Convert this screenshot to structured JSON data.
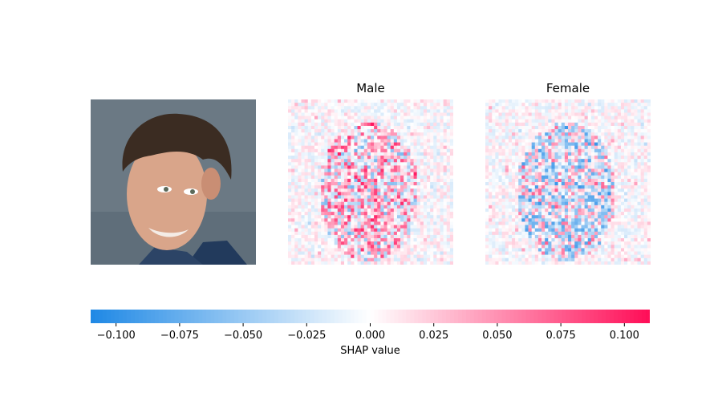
{
  "chart_data": {
    "type": "heatmap",
    "panels": [
      {
        "title": "",
        "kind": "image",
        "subject": "portrait photo"
      },
      {
        "title": "Male",
        "kind": "shap-map"
      },
      {
        "title": "Female",
        "kind": "shap-map"
      }
    ],
    "grid_size": 50,
    "colorbar": {
      "label": "SHAP value",
      "range": [
        -0.11,
        0.11
      ],
      "ticks": [
        -0.1,
        -0.075,
        -0.05,
        -0.025,
        0.0,
        0.025,
        0.05,
        0.075,
        0.1
      ],
      "tick_labels": [
        "−0.100",
        "−0.075",
        "−0.050",
        "−0.025",
        "0.000",
        "0.025",
        "0.050",
        "0.075",
        "0.100"
      ],
      "negative_color": "#1e88e5",
      "positive_color": "#ff0d57",
      "zero_color": "#ffffff"
    }
  }
}
